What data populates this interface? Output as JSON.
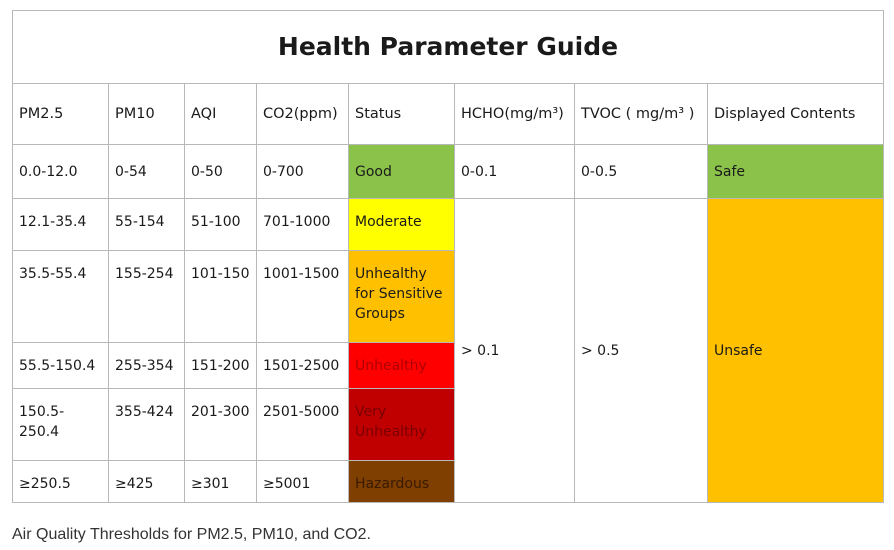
{
  "title": "Health Parameter Guide",
  "headers": {
    "pm25": "PM2.5",
    "pm10": "PM10",
    "aqi": "AQI",
    "co2": "CO2(ppm)",
    "status": "Status",
    "hcho": "HCHO(mg/m³)",
    "tvoc": "TVOC ( mg/m³ )",
    "display": "Displayed Contents"
  },
  "rows": [
    {
      "pm25": "0.0-12.0",
      "pm10": "0-54",
      "aqi": "0-50",
      "co2": "0-700",
      "status": "Good",
      "status_color": "#8bc34a"
    },
    {
      "pm25": "12.1-35.4",
      "pm10": "55-154",
      "aqi": "51-100",
      "co2": "701-1000",
      "status": "Moderate",
      "status_color": "#ffff00"
    },
    {
      "pm25": "35.5-55.4",
      "pm10": "155-254",
      "aqi": "101-150",
      "co2": "1001-1500",
      "status": "Unhealthy for Sensitive Groups",
      "status_color": "#ffc000"
    },
    {
      "pm25": "55.5-150.4",
      "pm10": "255-354",
      "aqi": "151-200",
      "co2": "1501-2500",
      "status": "Unhealthy",
      "status_color": "#ff0000"
    },
    {
      "pm25": "150.5-250.4",
      "pm10": "355-424",
      "aqi": "201-300",
      "co2": "2501-5000",
      "status": "Very Unhealthy",
      "status_color": "#c00000"
    },
    {
      "pm25": "≥250.5",
      "pm10": "≥425",
      "aqi": "≥301",
      "co2": "≥5001",
      "status": "Hazardous",
      "status_color": "#7f3f00"
    }
  ],
  "hcho": {
    "safe": "0-0.1",
    "unsafe": "> 0.1"
  },
  "tvoc": {
    "safe": "0-0.5",
    "unsafe": "> 0.5"
  },
  "display": {
    "safe": "Safe",
    "unsafe": "Unsafe",
    "safe_color": "#8bc34a",
    "unsafe_color": "#ffc000"
  },
  "caption": "Air Quality Thresholds for PM2.5, PM10, and CO2."
}
